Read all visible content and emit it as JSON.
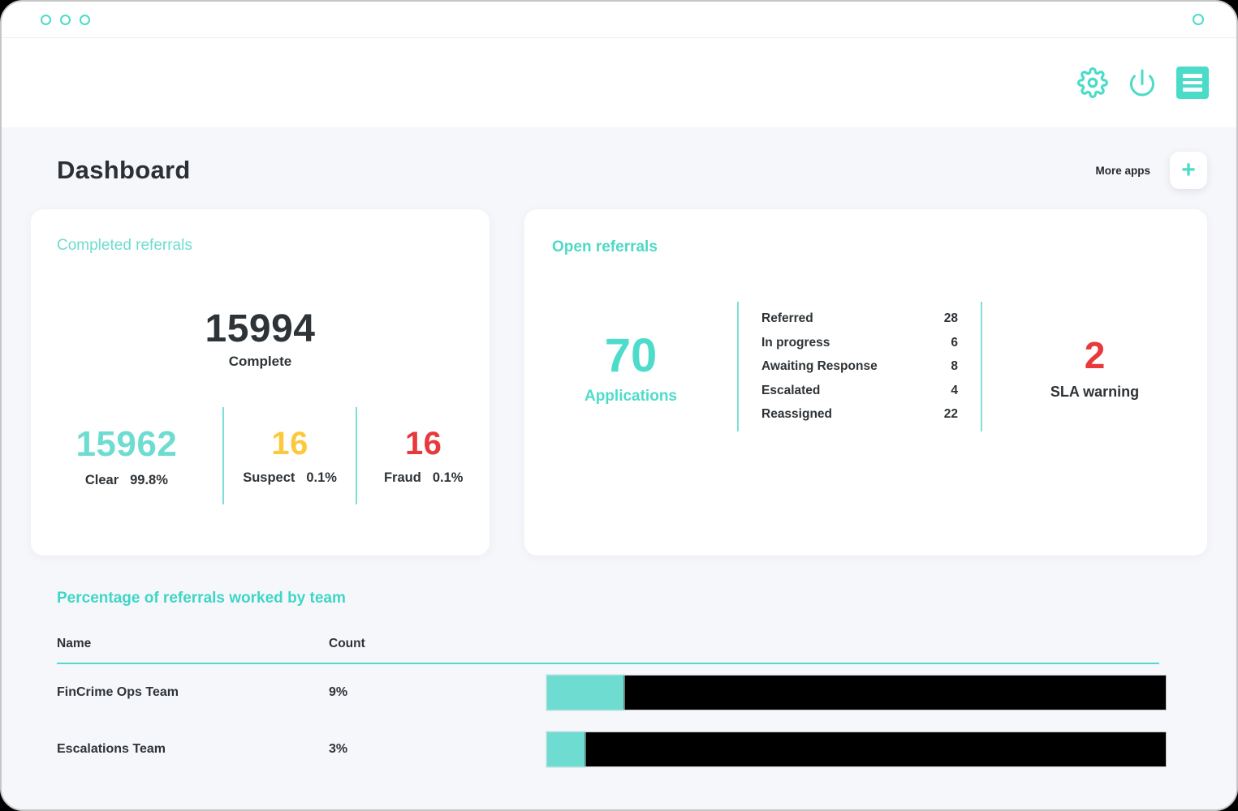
{
  "colors": {
    "accent_teal": "#4adcc8",
    "number_teal": "#6fdcd1",
    "suspect_yellow": "#fbc93c",
    "alert_red": "#e8393c",
    "dark_text": "#2e3337",
    "content_bg": "#f6f7fb",
    "bar_black": "#000000"
  },
  "page": {
    "title": "Dashboard",
    "more_apps_label": "More apps",
    "add_button_glyph": "+"
  },
  "completed_referrals": {
    "title": "Completed referrals",
    "total": {
      "value": "15994",
      "label": "Complete"
    },
    "breakdown": [
      {
        "value": "15962",
        "label": "Clear",
        "pct": "99.8%",
        "color": "#6fdcd1"
      },
      {
        "value": "16",
        "label": "Suspect",
        "pct": "0.1%",
        "color": "#fbc93c"
      },
      {
        "value": "16",
        "label": "Fraud",
        "pct": "0.1%",
        "color": "#e8393c"
      }
    ]
  },
  "open_referrals": {
    "title": "Open referrals",
    "applications": {
      "value": "70",
      "label": "Applications"
    },
    "statuses": [
      {
        "label": "Referred",
        "value": "28"
      },
      {
        "label": "In progress",
        "value": "6"
      },
      {
        "label": "Awaiting Response",
        "value": "8"
      },
      {
        "label": "Escalated",
        "value": "4"
      },
      {
        "label": "Reassigned",
        "value": "22"
      }
    ],
    "sla": {
      "value": "2",
      "label": "SLA warning",
      "color": "#e8393c"
    }
  },
  "team_section": {
    "title": "Percentage of referrals worked by team",
    "columns": {
      "name": "Name",
      "count": "Count"
    },
    "rows": [
      {
        "name": "FinCrime Ops Team",
        "count": "9%",
        "teal_pct": 12.3
      },
      {
        "name": "Escalations Team",
        "count": "3%",
        "teal_pct": 6.1
      }
    ]
  },
  "chart_data": {
    "type": "bar",
    "title": "Percentage of referrals worked by team",
    "categories": [
      "FinCrime Ops Team",
      "Escalations Team"
    ],
    "values": [
      9,
      3
    ],
    "value_labels": [
      "9%",
      "3%"
    ],
    "legend_position": "none",
    "orientation": "horizontal"
  }
}
